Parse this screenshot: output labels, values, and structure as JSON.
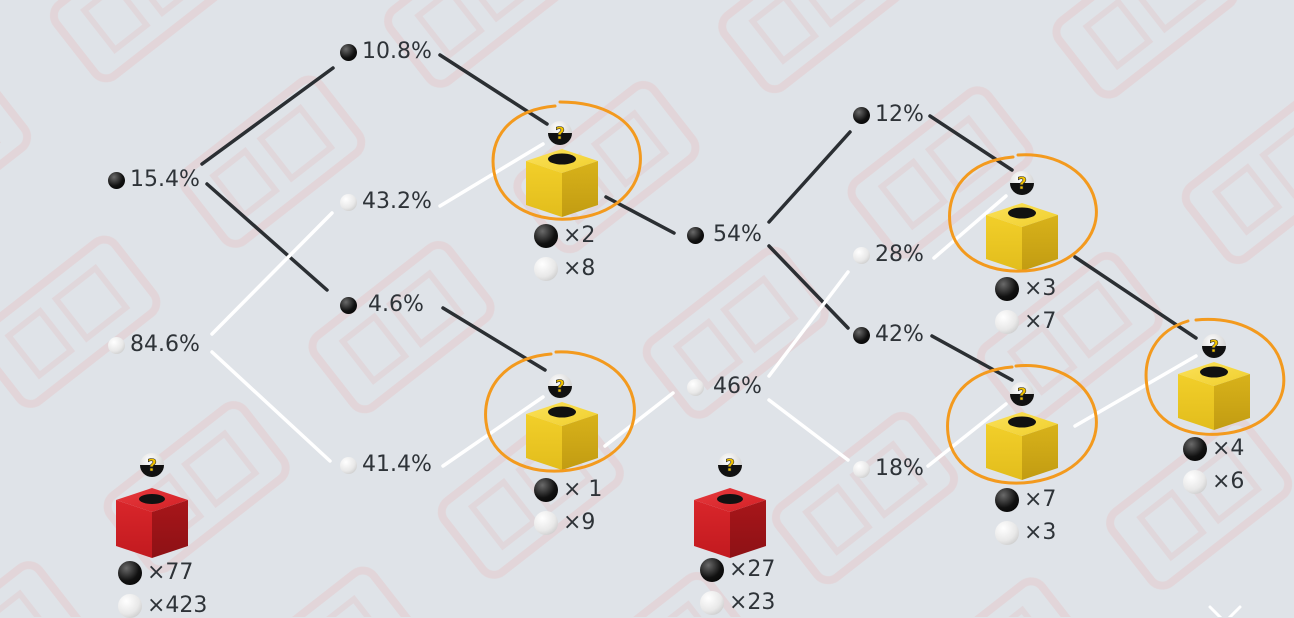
{
  "colors": {
    "background": "#dfe3e8",
    "black_line": "#2b2f33",
    "white_line": "#ffffff",
    "circle_highlight": "#f39a1e",
    "red_box": "#d32025",
    "yellow_box": "#f2cf2a",
    "text": "#2e3338"
  },
  "icons": {
    "black_ball": "black-ball-icon",
    "white_ball": "white-ball-icon",
    "mystery_ball": "question-ball-icon",
    "box": "cube-box-icon",
    "close": "close-icon"
  },
  "tree1": {
    "root_black": "15.4%",
    "root_white": "84.6%",
    "bb": "10.8%",
    "bw": "43.2%",
    "wb": "4.6%",
    "ww": "41.4%",
    "red_box": {
      "black_count": "×77",
      "white_count": "×423"
    },
    "box_a": {
      "black_count": "×2",
      "white_count": "×8"
    },
    "box_b": {
      "black_count": "× 1",
      "white_count": "×9"
    }
  },
  "tree2": {
    "root_black": "54%",
    "root_white": "46%",
    "bb": "12%",
    "bw": "28%",
    "wb": "42%",
    "ww": "18%",
    "red_box": {
      "black_count": "×27",
      "white_count": "×23"
    },
    "box_c": {
      "black_count": "×3",
      "white_count": "×7"
    },
    "box_d": {
      "black_count": "×7",
      "white_count": "×3"
    },
    "box_e": {
      "black_count": "×4",
      "white_count": "×6"
    }
  }
}
